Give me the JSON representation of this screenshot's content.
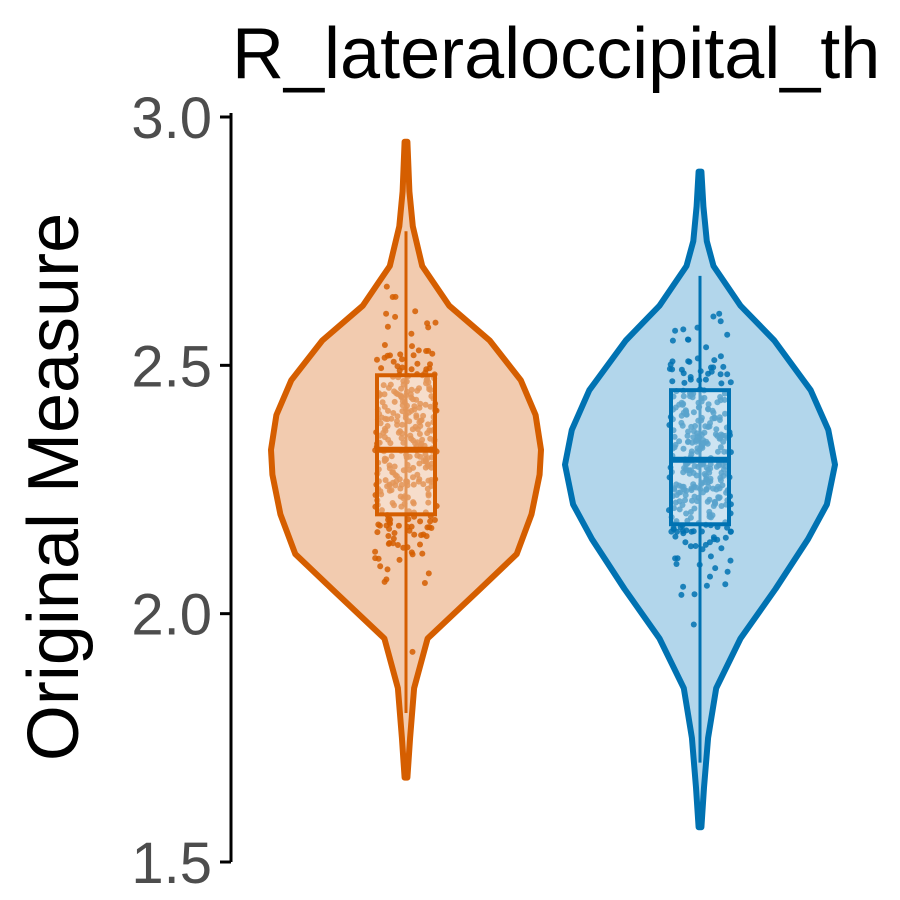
{
  "chart_data": {
    "type": "violin",
    "title": "R_lateraloccipital_th",
    "xlabel": "",
    "ylabel": "Original Measure",
    "ylim": [
      1.5,
      3.0
    ],
    "yticks": [
      "1.5",
      "2.0",
      "2.5",
      "3.0"
    ],
    "grid": false,
    "legend": "none",
    "groups": [
      {
        "color": "#D55E00",
        "fill": "#F2CBAF",
        "min": 1.67,
        "max": 2.95,
        "q1": 2.2,
        "median": 2.33,
        "q3": 2.48,
        "whisker_low": 1.8,
        "whisker_high": 2.77,
        "density": [
          [
            1.67,
            0.01
          ],
          [
            1.75,
            0.03
          ],
          [
            1.85,
            0.06
          ],
          [
            1.95,
            0.16
          ],
          [
            2.05,
            0.55
          ],
          [
            2.12,
            0.82
          ],
          [
            2.2,
            0.93
          ],
          [
            2.28,
            0.99
          ],
          [
            2.33,
            1.0
          ],
          [
            2.4,
            0.96
          ],
          [
            2.47,
            0.85
          ],
          [
            2.55,
            0.62
          ],
          [
            2.62,
            0.32
          ],
          [
            2.7,
            0.12
          ],
          [
            2.78,
            0.05
          ],
          [
            2.85,
            0.025
          ],
          [
            2.95,
            0.01
          ]
        ]
      },
      {
        "color": "#0072B2",
        "fill": "#B2D6EB",
        "min": 1.57,
        "max": 2.89,
        "q1": 2.18,
        "median": 2.31,
        "q3": 2.45,
        "whisker_low": 1.7,
        "whisker_high": 2.68,
        "density": [
          [
            1.57,
            0.01
          ],
          [
            1.65,
            0.03
          ],
          [
            1.75,
            0.06
          ],
          [
            1.85,
            0.12
          ],
          [
            1.95,
            0.3
          ],
          [
            2.05,
            0.56
          ],
          [
            2.15,
            0.8
          ],
          [
            2.22,
            0.94
          ],
          [
            2.3,
            1.0
          ],
          [
            2.37,
            0.95
          ],
          [
            2.45,
            0.82
          ],
          [
            2.55,
            0.55
          ],
          [
            2.62,
            0.3
          ],
          [
            2.7,
            0.1
          ],
          [
            2.75,
            0.05
          ],
          [
            2.82,
            0.025
          ],
          [
            2.89,
            0.01
          ]
        ]
      }
    ]
  }
}
